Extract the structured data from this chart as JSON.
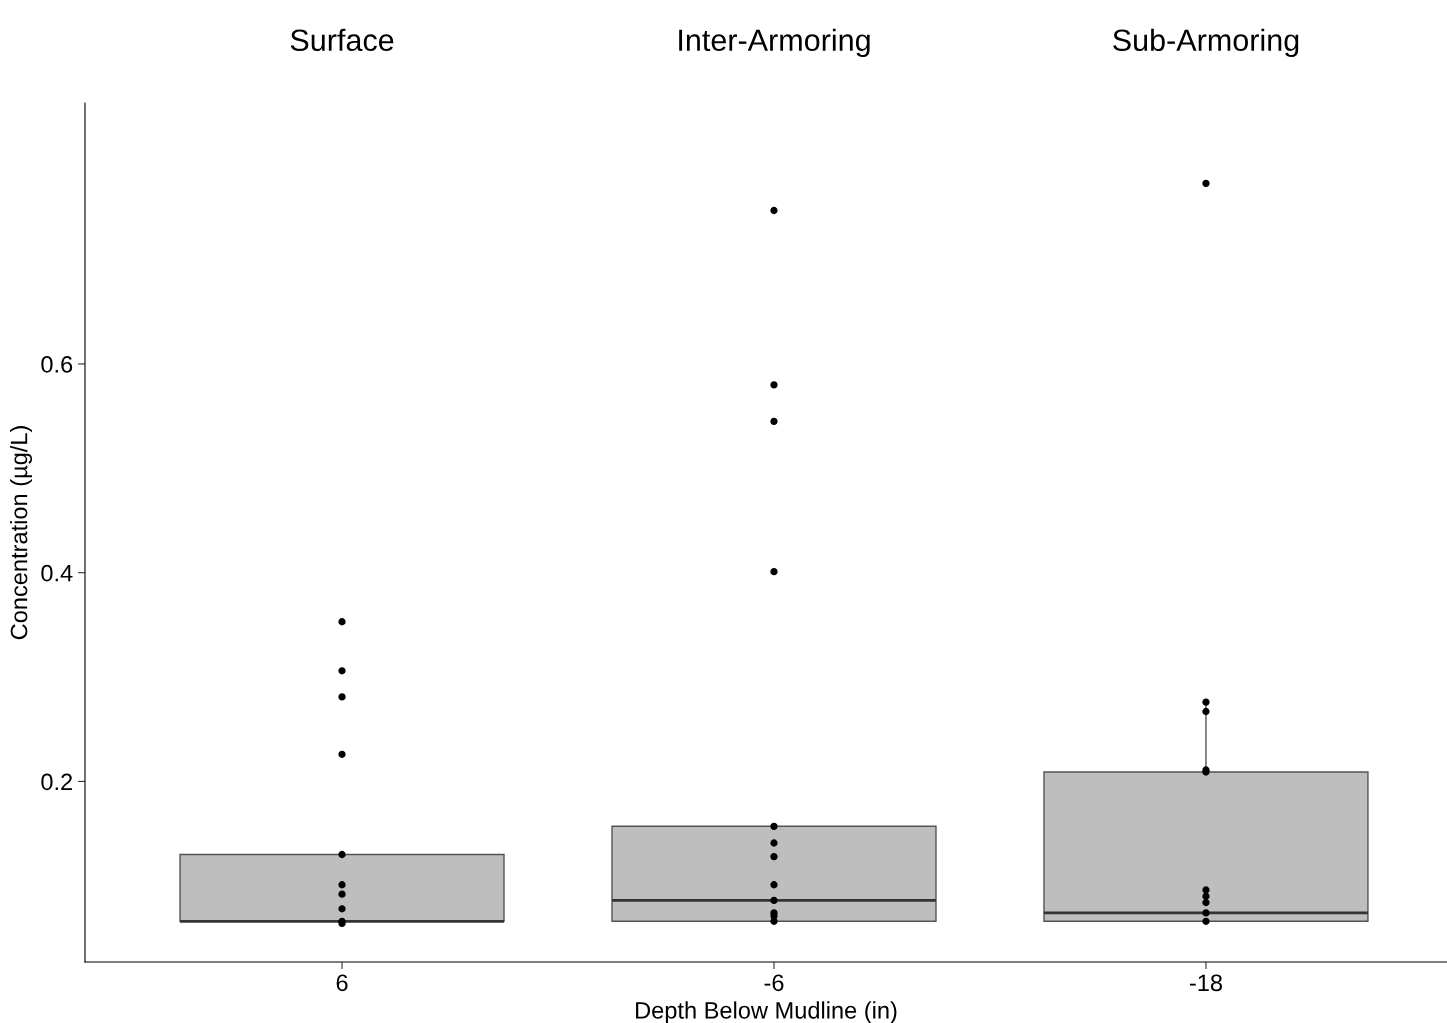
{
  "chart_data": {
    "type": "box",
    "xlabel": "Depth Below Mudline (in)",
    "ylabel": "Concentration (µg/L)",
    "annotations": [
      "Surface",
      "Inter-Armoring",
      "Sub-Armoring"
    ],
    "categories": [
      "6",
      "-6",
      "-18"
    ],
    "ylim": [
      0.027,
      0.85
    ],
    "yticks": [
      0.2,
      0.4,
      0.6
    ],
    "grid": false,
    "legend": false,
    "series": [
      {
        "color": "#bebebe",
        "boxes": [
          {
            "low": 0.066,
            "q1": 0.066,
            "median": 0.066,
            "q3": 0.13,
            "high": 0.13
          },
          {
            "low": 0.066,
            "q1": 0.066,
            "median": 0.086,
            "q3": 0.157,
            "high": 0.157
          },
          {
            "low": 0.066,
            "q1": 0.066,
            "median": 0.074,
            "q3": 0.209,
            "high": 0.276
          }
        ]
      },
      {
        "type": "scatter",
        "color": "#000000",
        "marker": "circle",
        "x": [
          "6",
          "6",
          "6",
          "6",
          "6",
          "6",
          "6",
          "6",
          "6",
          "6",
          "-6",
          "-6",
          "-6",
          "-6",
          "-6",
          "-6",
          "-6",
          "-6",
          "-6",
          "-6",
          "-6",
          "-6",
          "-18",
          "-18",
          "-18",
          "-18",
          "-18",
          "-18",
          "-18",
          "-18",
          "-18",
          "-18"
        ],
        "values": [
          0.353,
          0.306,
          0.281,
          0.226,
          0.13,
          0.101,
          0.092,
          0.078,
          0.066,
          0.064,
          0.747,
          0.58,
          0.545,
          0.401,
          0.157,
          0.141,
          0.128,
          0.101,
          0.086,
          0.074,
          0.071,
          0.066,
          0.773,
          0.276,
          0.267,
          0.211,
          0.209,
          0.096,
          0.09,
          0.084,
          0.074,
          0.066
        ]
      }
    ]
  }
}
